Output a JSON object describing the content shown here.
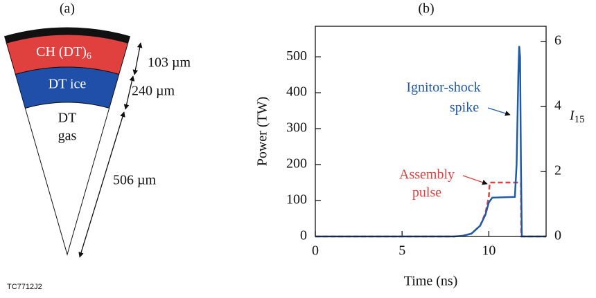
{
  "figure_id": "TC7712J2",
  "panel_a": {
    "label": "(a)",
    "layers": [
      {
        "name": "CH (DT)",
        "sub": "6",
        "color": "#e0413f"
      },
      {
        "name": "DT ice",
        "color": "#1f4fa8"
      },
      {
        "name_lines": [
          "DT",
          "gas"
        ],
        "color": "#ffffff"
      }
    ],
    "dimensions": [
      "103 µm",
      "240 µm",
      "506 µm"
    ]
  },
  "chart_data": {
    "type": "line",
    "label": "(b)",
    "xlabel": "Time (ns)",
    "ylabel": "Power (TW)",
    "y2label": {
      "main": "I",
      "sub": "15"
    },
    "xlim": [
      0,
      13.3
    ],
    "xticks": [
      0,
      5,
      10
    ],
    "ylim": [
      0,
      585
    ],
    "yticks": [
      0,
      100,
      200,
      300,
      400,
      500
    ],
    "y2lim": [
      0,
      6.47
    ],
    "y2ticks": [
      0,
      2,
      4,
      6
    ],
    "series": [
      {
        "color": "#1f5aa6",
        "dash": false,
        "x": [
          0,
          8,
          8.5,
          9,
          9.5,
          9.8,
          10,
          10.2,
          11.5,
          11.6,
          11.7,
          11.75,
          11.8,
          11.85,
          11.9,
          13.3
        ],
        "values": [
          0,
          0,
          2,
          8,
          30,
          60,
          95,
          108,
          110,
          200,
          450,
          530,
          500,
          200,
          0,
          0
        ]
      },
      {
        "color": "#e0413f",
        "dash": true,
        "x": [
          0,
          8,
          8.5,
          9,
          9.5,
          9.8,
          10,
          10.05,
          11.85,
          11.87,
          13.3
        ],
        "values": [
          0,
          0,
          2,
          8,
          30,
          65,
          110,
          150,
          150,
          0,
          0
        ]
      }
    ],
    "annotations": [
      {
        "lines": [
          "Ignitor-shock",
          "spike"
        ],
        "color": "#1f5aa6"
      },
      {
        "lines": [
          "Assembly",
          "pulse"
        ],
        "color": "#e0413f"
      }
    ]
  }
}
